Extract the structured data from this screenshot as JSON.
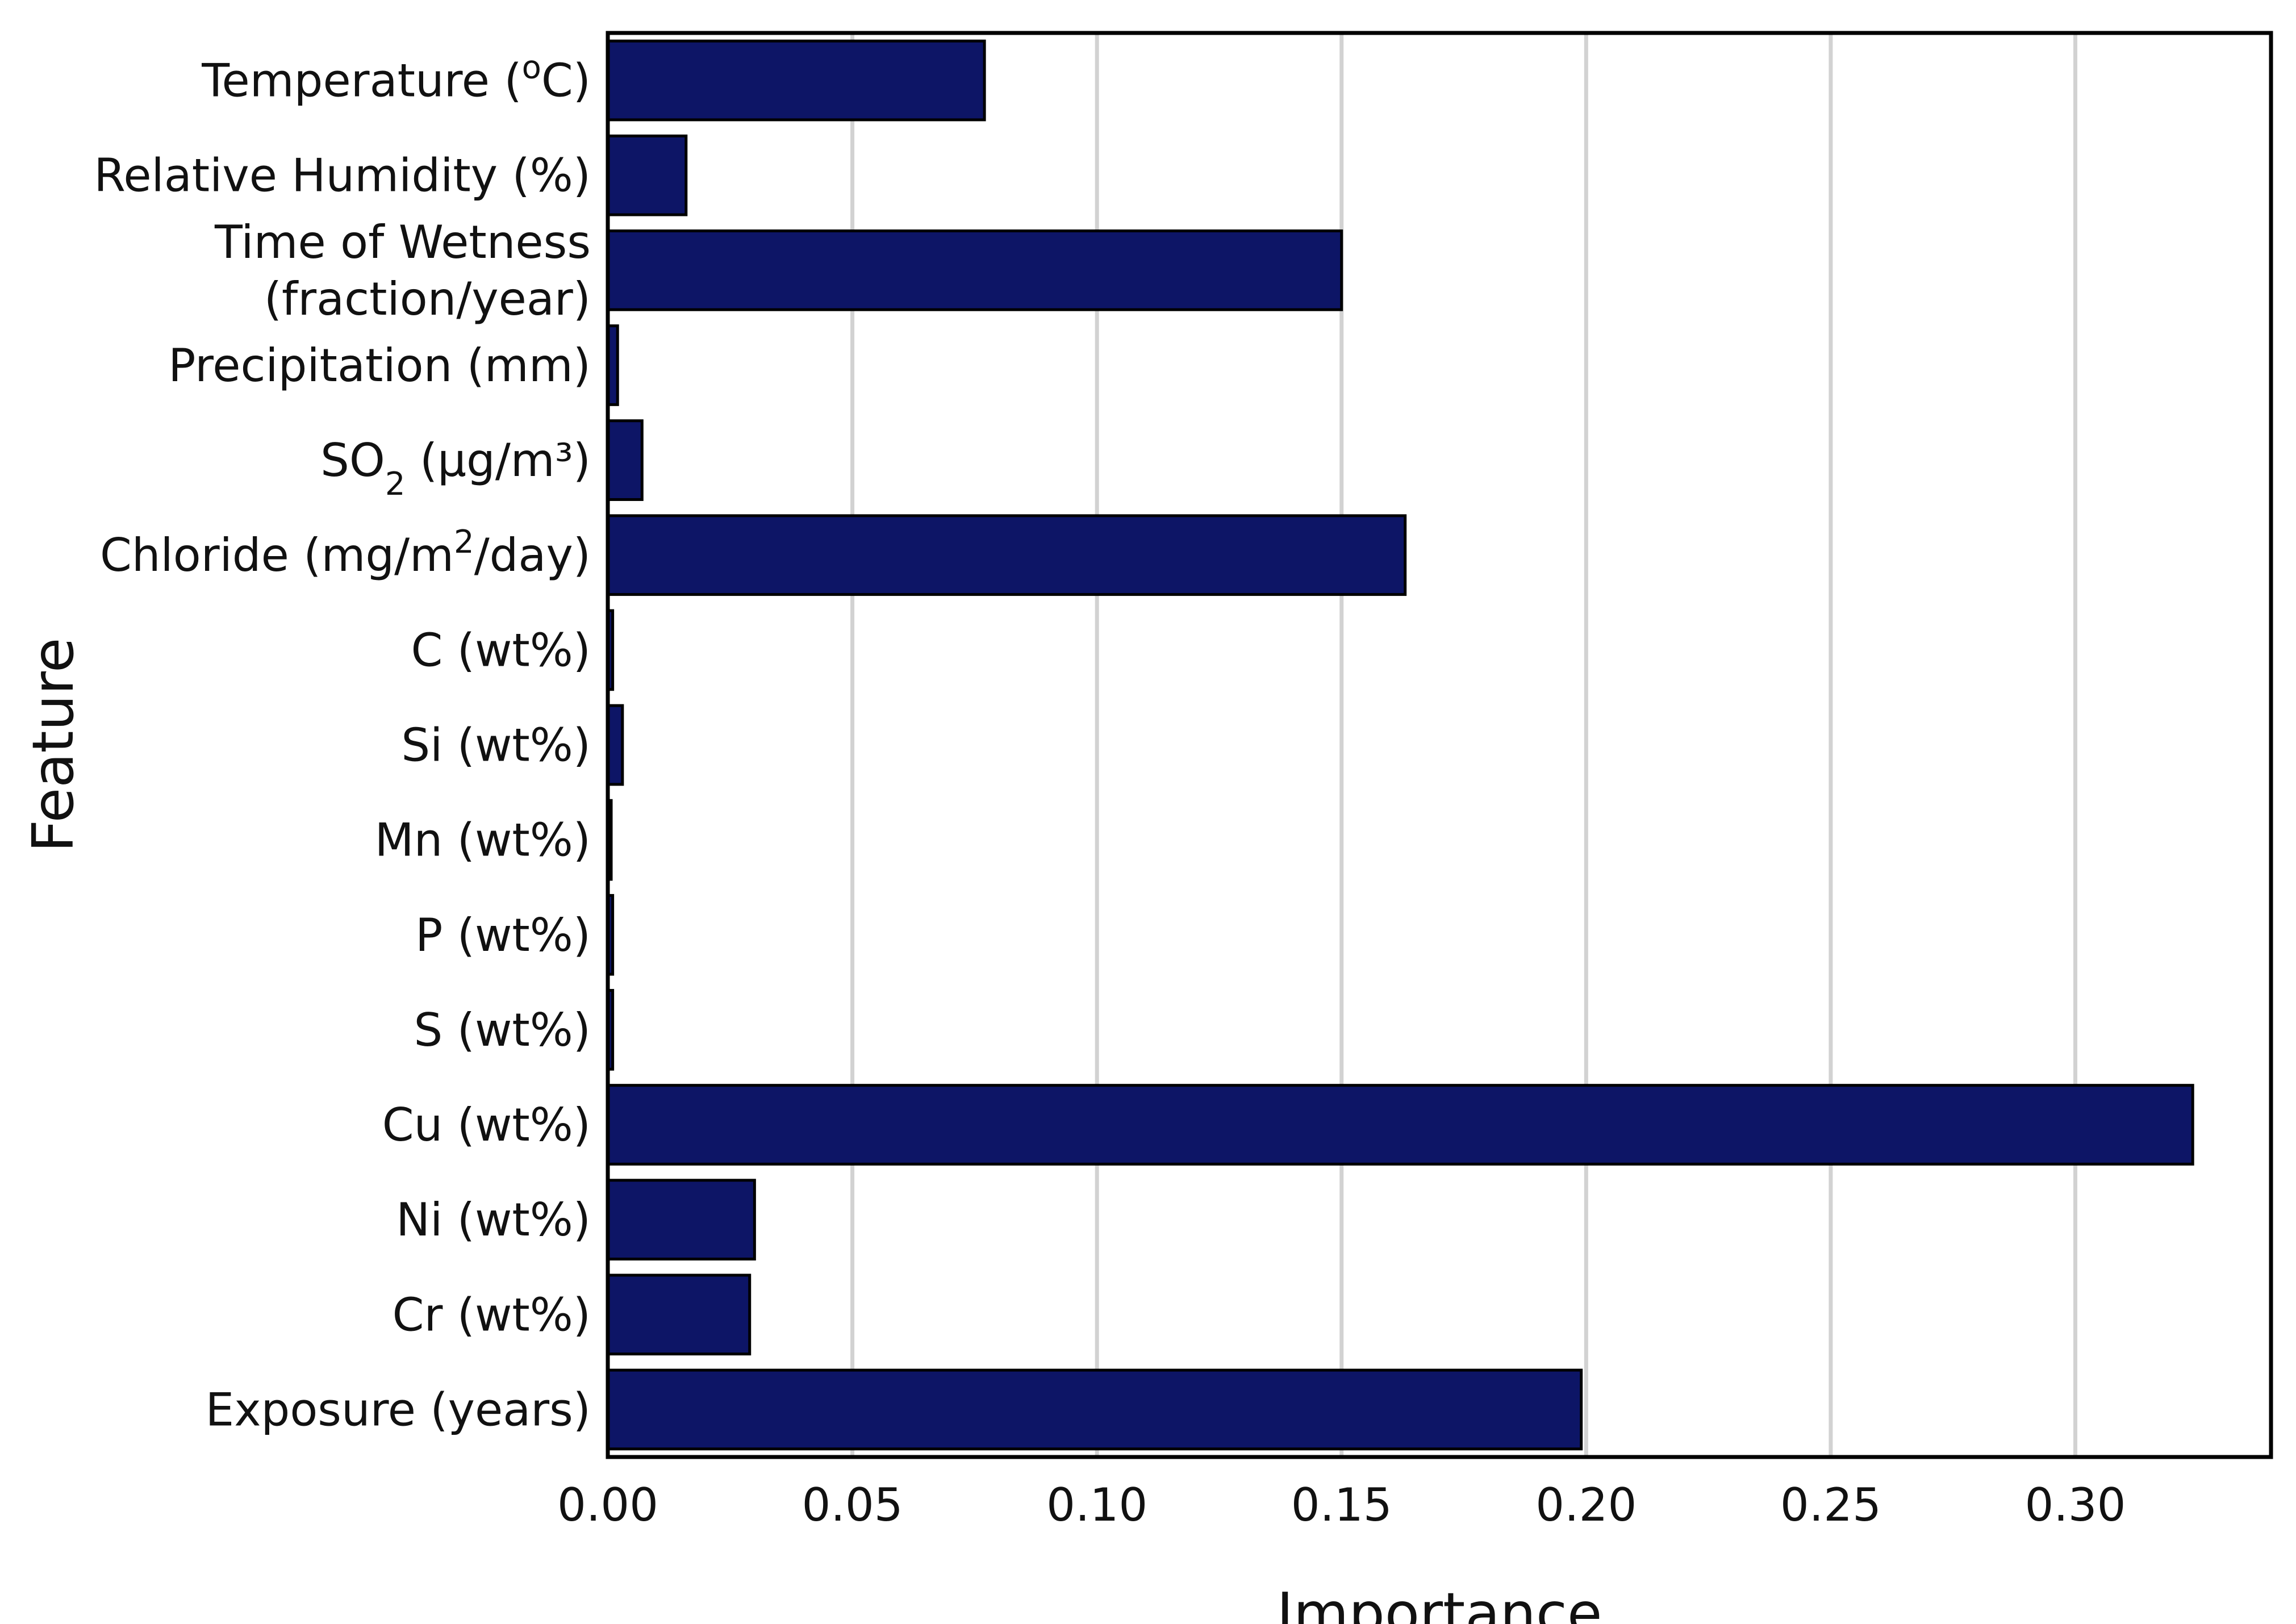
{
  "chart_data": {
    "type": "bar",
    "orientation": "horizontal",
    "xlabel": "Importance",
    "ylabel": "Feature",
    "xlim": [
      0,
      0.34
    ],
    "xticks": [
      "0.00",
      "0.05",
      "0.10",
      "0.15",
      "0.20",
      "0.25",
      "0.30"
    ],
    "grid": "vertical",
    "bar_color": "#0d1566",
    "categories": [
      {
        "label": "Temperature (",
        "sup": "o",
        "after": "C)",
        "value": 0.077
      },
      {
        "label": "Relative Humidity (%)",
        "value": 0.016
      },
      {
        "label": "Time of Wetness",
        "line2": "(fraction/year)",
        "value": 0.15
      },
      {
        "label": "Precipitation (mm)",
        "value": 0.002
      },
      {
        "label": "SO",
        "sub": "2",
        "after": " (µg/m³)",
        "value": 0.007
      },
      {
        "label": "Chloride (mg/m",
        "sup": "2",
        "after": "/day)",
        "value": 0.163
      },
      {
        "label": "C (wt%)",
        "value": 0.001
      },
      {
        "label": "Si (wt%)",
        "value": 0.003
      },
      {
        "label": "Mn (wt%)",
        "value": 0.0005
      },
      {
        "label": "P (wt%)",
        "value": 0.001
      },
      {
        "label": "S (wt%)",
        "value": 0.001
      },
      {
        "label": "Cu (wt%)",
        "value": 0.324
      },
      {
        "label": "Ni (wt%)",
        "value": 0.03
      },
      {
        "label": "Cr (wt%)",
        "value": 0.029
      },
      {
        "label": "Exposure (years)",
        "value": 0.199
      }
    ]
  }
}
